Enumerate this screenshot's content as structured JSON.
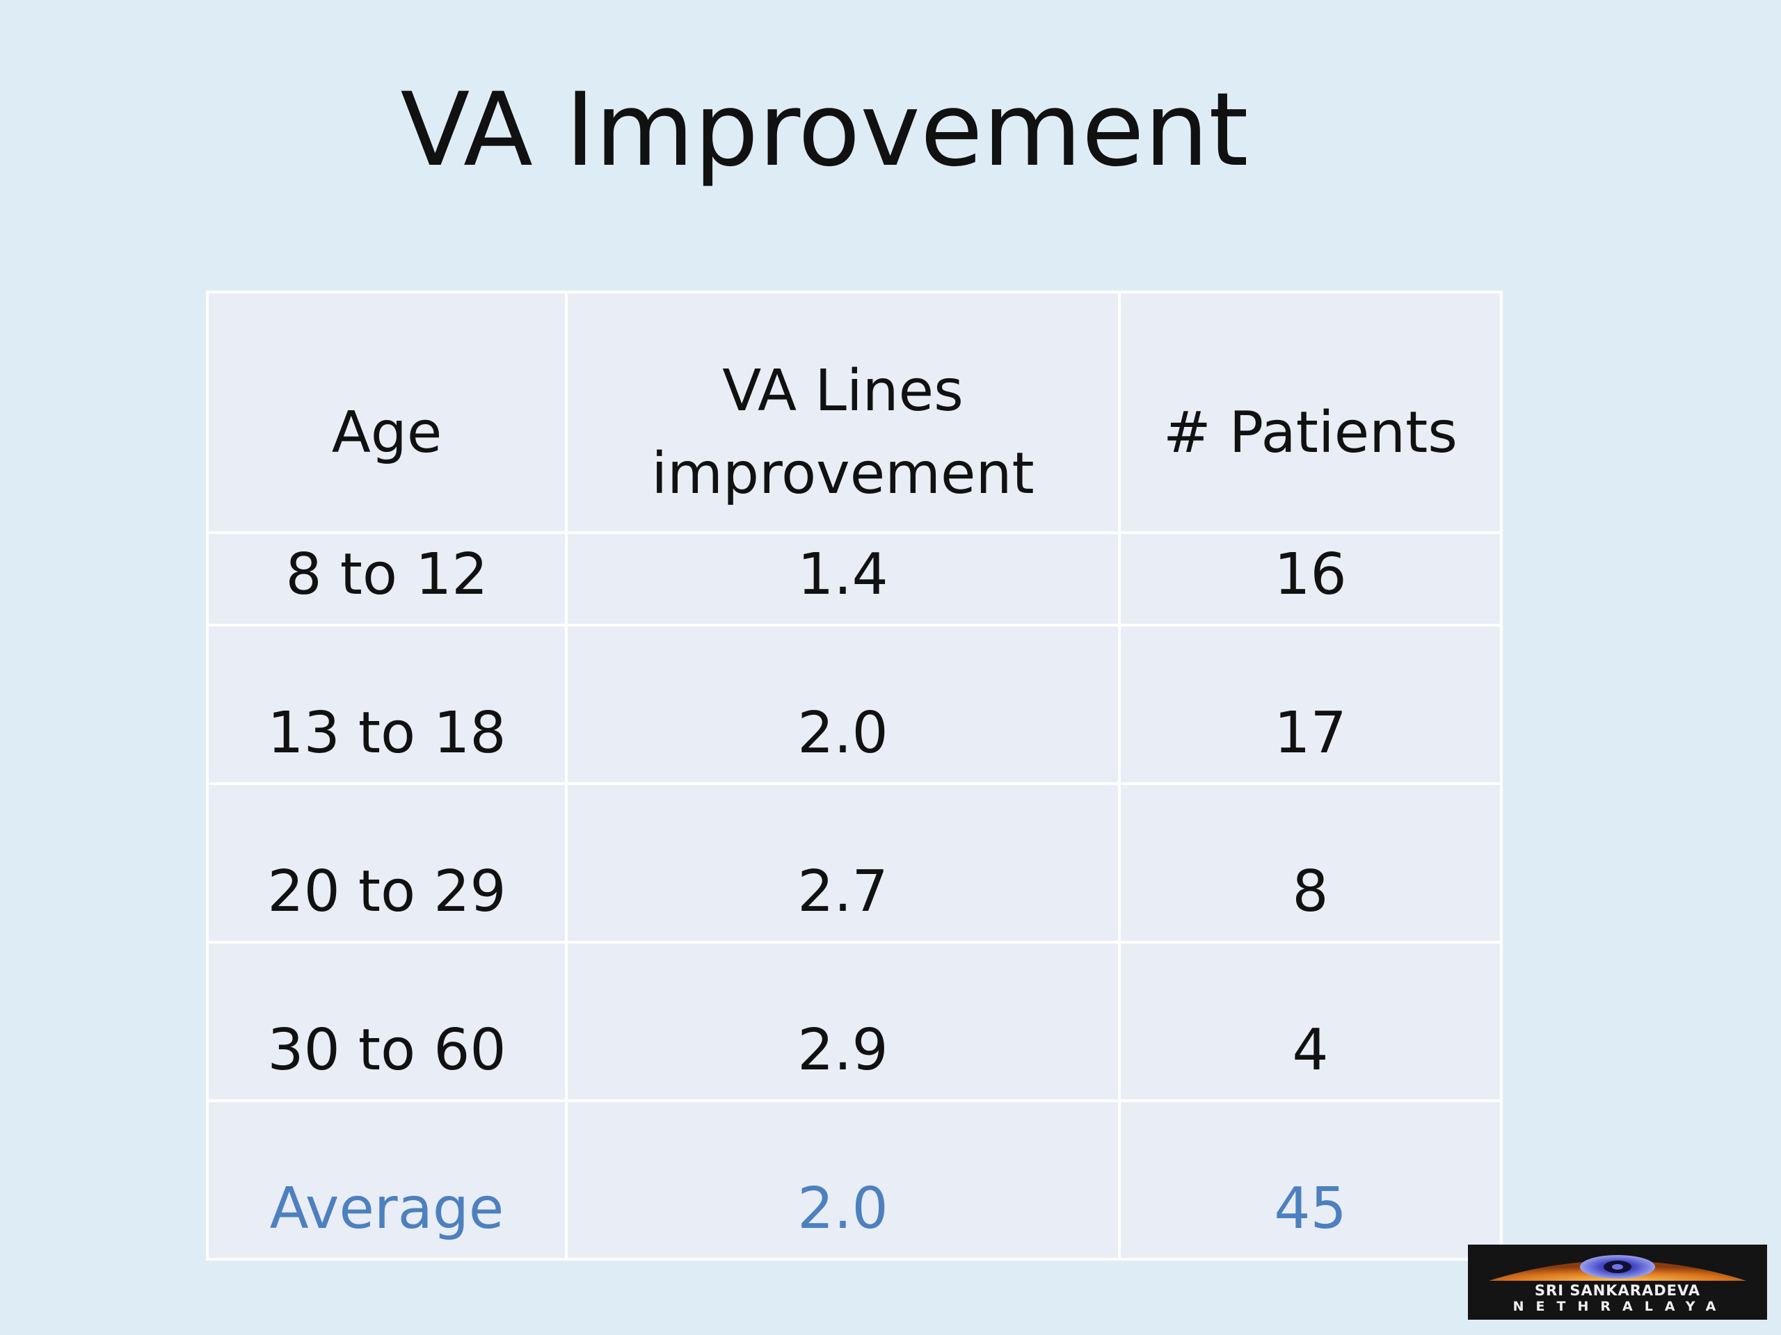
{
  "slide": {
    "title": "VA Improvement"
  },
  "table": {
    "headers": [
      "Age",
      "VA Lines improvement",
      "# Patients"
    ],
    "rows": [
      [
        "8 to 12",
        "1.4",
        "16"
      ],
      [
        "13 to 18",
        "2.0",
        "17"
      ],
      [
        "20 to 29",
        "2.7",
        "8"
      ],
      [
        "30 to 60",
        "2.9",
        "4"
      ]
    ],
    "summary": [
      "Average",
      "2.0",
      "45"
    ]
  },
  "logo": {
    "line1": "SRI SANKARADEVA",
    "line2": "NETHRALAYA"
  },
  "colors": {
    "background": "#deedf5",
    "table_fill": "#e9edf5",
    "summary_text": "#4d80be",
    "logo_bg": "#141414",
    "logo_arc": "#e07a1f"
  },
  "chart_data": {
    "type": "table",
    "columns": [
      "Age",
      "VA Lines improvement",
      "# Patients"
    ],
    "rows": [
      {
        "age": "8 to 12",
        "va_lines_improvement": 1.4,
        "patients": 16
      },
      {
        "age": "13 to 18",
        "va_lines_improvement": 2.0,
        "patients": 17
      },
      {
        "age": "20 to 29",
        "va_lines_improvement": 2.7,
        "patients": 8
      },
      {
        "age": "30 to 60",
        "va_lines_improvement": 2.9,
        "patients": 4
      }
    ],
    "summary": {
      "age": "Average",
      "va_lines_improvement": 2.0,
      "patients": 45
    }
  }
}
